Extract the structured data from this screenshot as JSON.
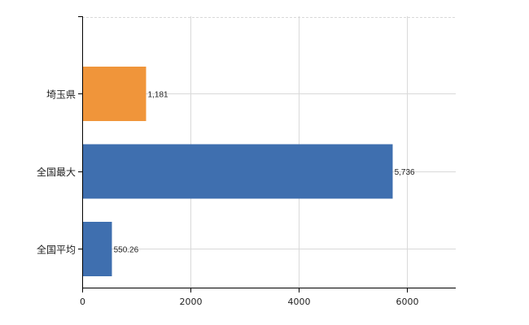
{
  "chart_data": {
    "type": "bar",
    "orientation": "horizontal",
    "categories": [
      "埼玉県",
      "全国最大",
      "全国平均"
    ],
    "values": [
      1181,
      5736,
      550.26
    ],
    "value_labels": [
      "1,181",
      "5,736",
      "550.26"
    ],
    "bar_colors": [
      "#f0953a",
      "#3f6faf",
      "#3f6faf"
    ],
    "xlim": [
      0,
      6900
    ],
    "x_ticks": [
      0,
      2000,
      4000,
      6000
    ],
    "grid": true,
    "title": "",
    "xlabel": "",
    "ylabel": ""
  }
}
